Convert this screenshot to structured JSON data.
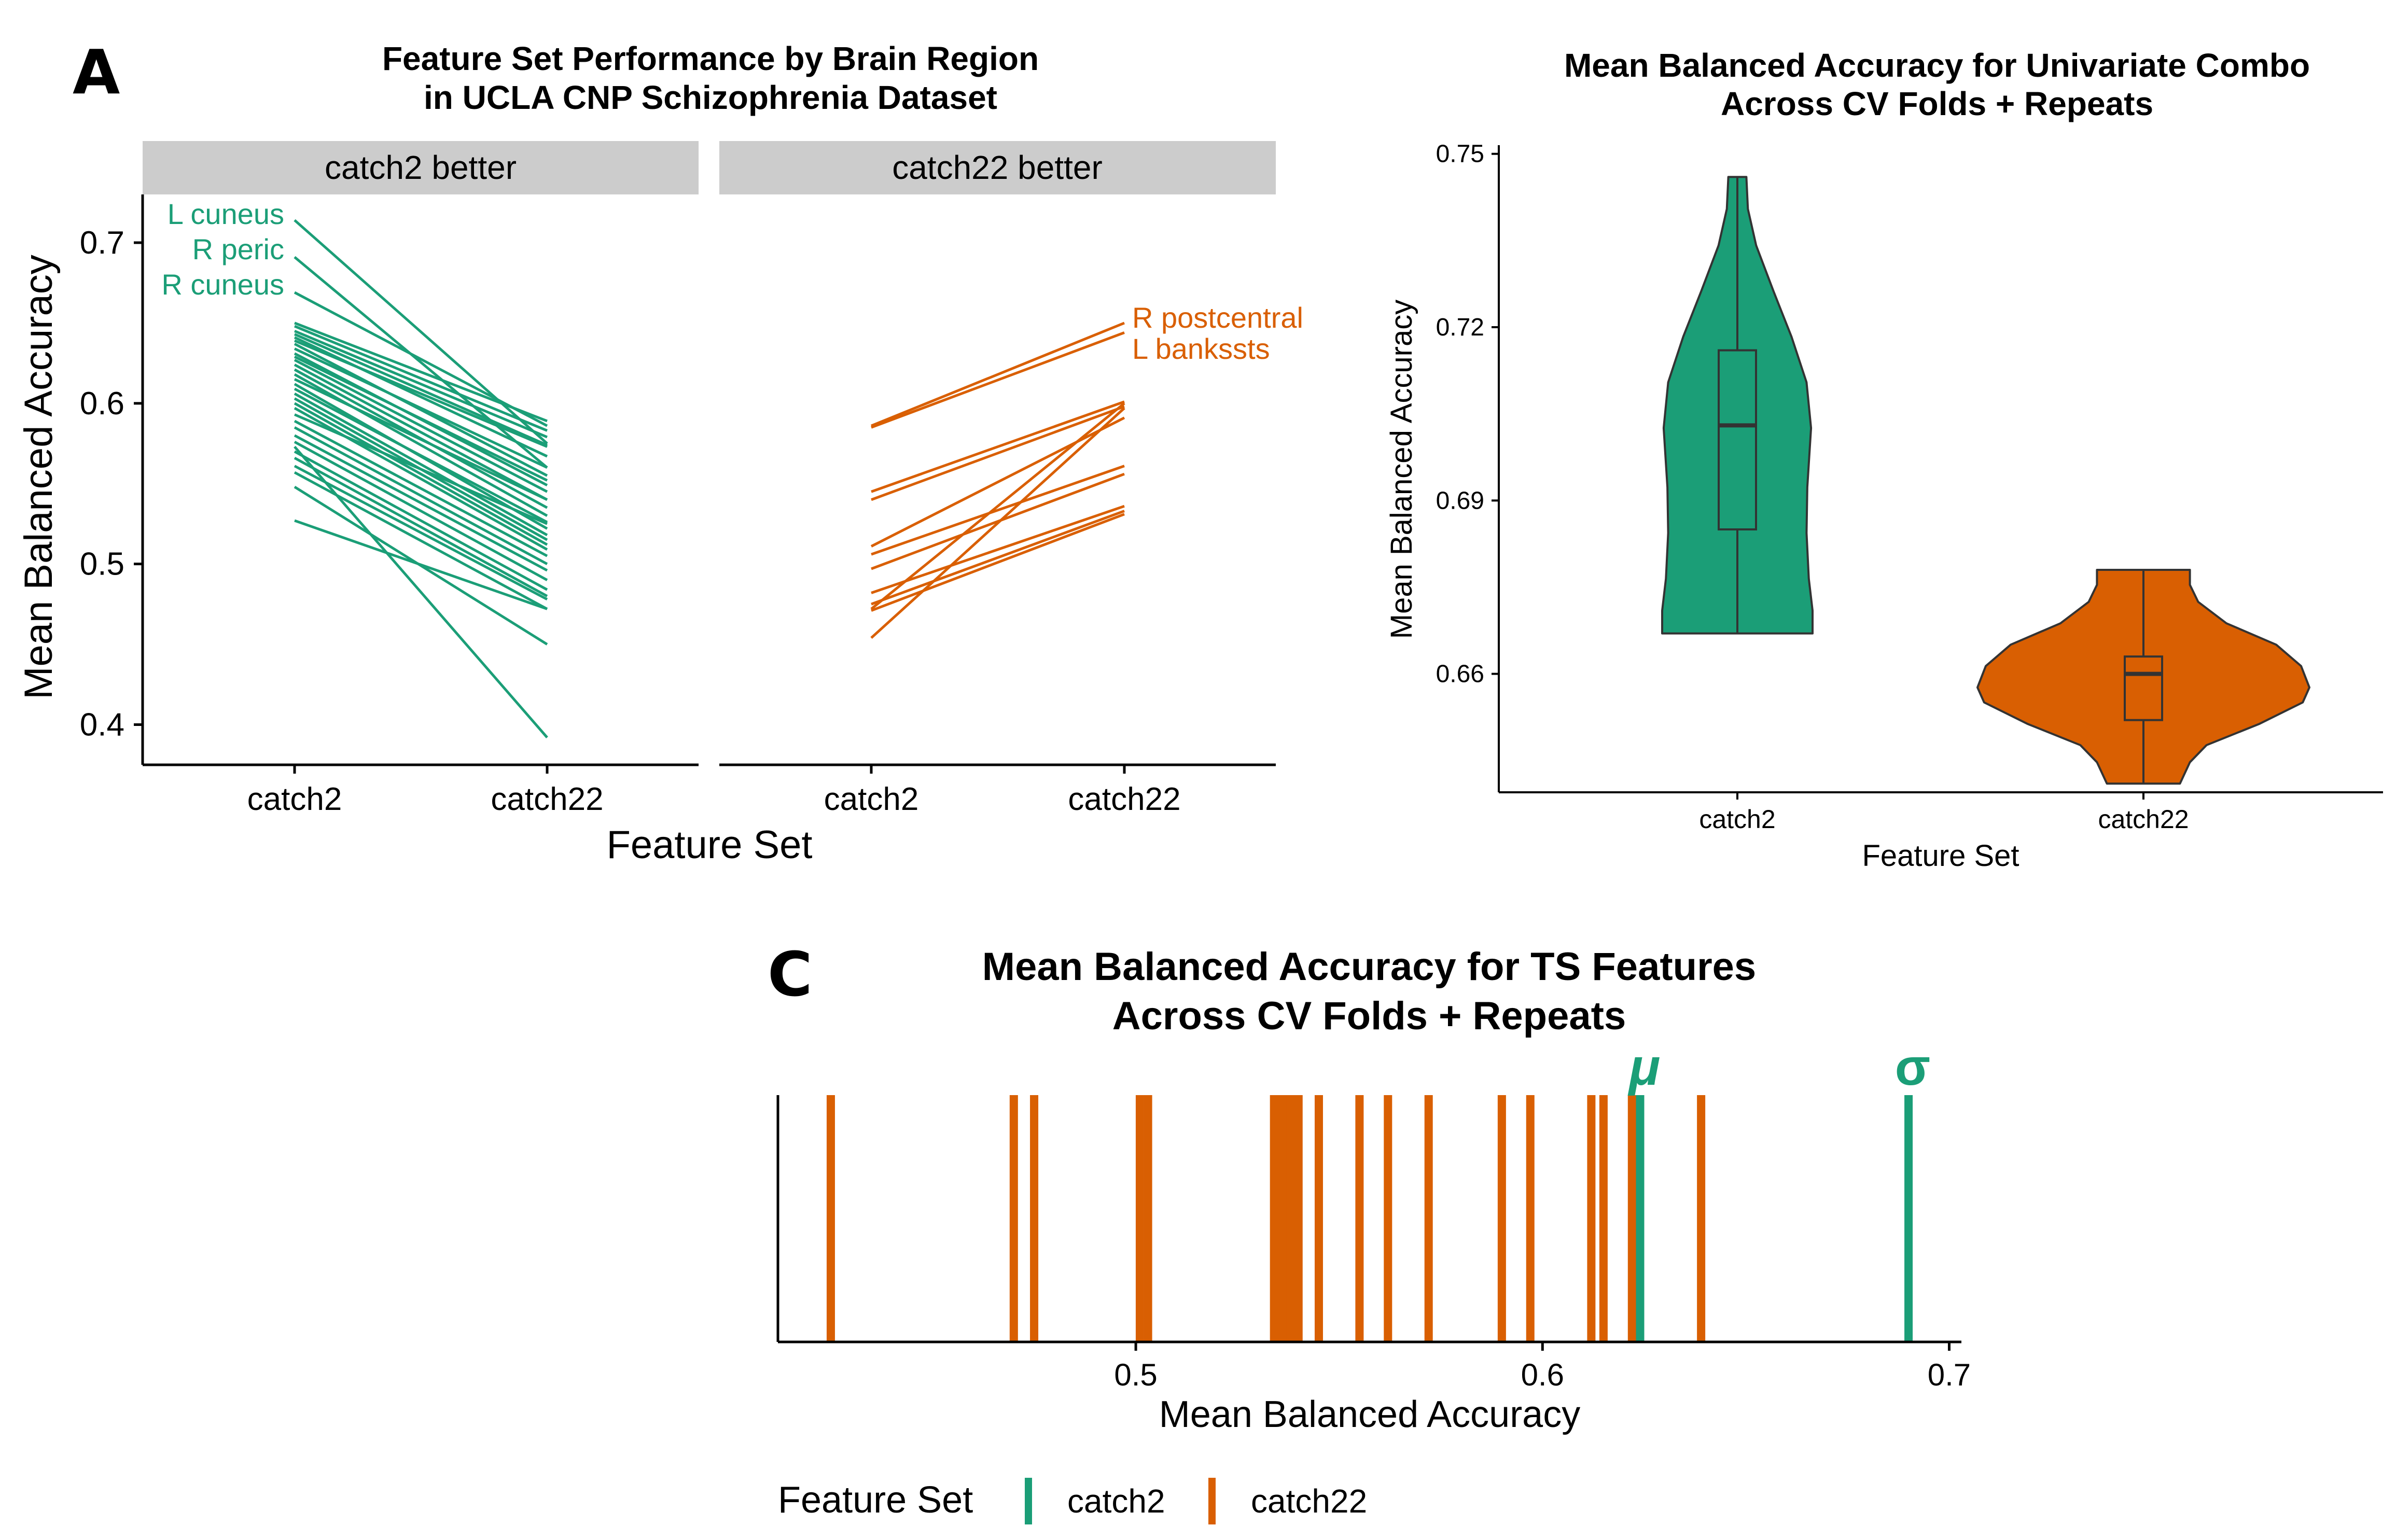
{
  "colors": {
    "catch2": "#1b9e77",
    "catch22": "#d95f02",
    "strip": "#cccccc",
    "axis": "#000000"
  },
  "panel_letters": {
    "a": "A",
    "c": "C"
  },
  "chart_data": [
    {
      "id": "A",
      "type": "line",
      "title": "Feature Set Performance by Brain Region",
      "subtitle": "in UCLA CNP Schizophrenia Dataset",
      "xlabel": "Feature Set",
      "ylabel": "Mean Balanced Accuracy",
      "y_ticks": [
        "0.4",
        "0.5",
        "0.6",
        "0.7"
      ],
      "ylim": [
        0.375,
        0.73
      ],
      "categories": [
        "catch2",
        "catch22"
      ],
      "facets": [
        {
          "label": "catch2 better",
          "color_key": "catch2",
          "annotations": [
            "L cuneus",
            "R peric",
            "R cuneus"
          ],
          "pairs": [
            [
              0.714,
              0.575
            ],
            [
              0.691,
              0.56
            ],
            [
              0.669,
              0.586
            ],
            [
              0.65,
              0.589
            ],
            [
              0.648,
              0.583
            ],
            [
              0.645,
              0.579
            ],
            [
              0.643,
              0.574
            ],
            [
              0.641,
              0.567
            ],
            [
              0.639,
              0.573
            ],
            [
              0.637,
              0.555
            ],
            [
              0.634,
              0.56
            ],
            [
              0.631,
              0.549
            ],
            [
              0.629,
              0.552
            ],
            [
              0.627,
              0.545
            ],
            [
              0.624,
              0.54
            ],
            [
              0.621,
              0.535
            ],
            [
              0.618,
              0.53
            ],
            [
              0.615,
              0.54
            ],
            [
              0.612,
              0.522
            ],
            [
              0.609,
              0.526
            ],
            [
              0.606,
              0.518
            ],
            [
              0.603,
              0.515
            ],
            [
              0.6,
              0.512
            ],
            [
              0.597,
              0.509
            ],
            [
              0.593,
              0.525
            ],
            [
              0.589,
              0.505
            ],
            [
              0.585,
              0.5
            ],
            [
              0.58,
              0.496
            ],
            [
              0.576,
              0.49
            ],
            [
              0.57,
              0.484
            ],
            [
              0.566,
              0.48
            ],
            [
              0.561,
              0.478
            ],
            [
              0.557,
              0.472
            ],
            [
              0.573,
              0.392
            ],
            [
              0.548,
              0.45
            ],
            [
              0.527,
              0.472
            ]
          ]
        },
        {
          "label": "catch22 better",
          "color_key": "catch22",
          "annotations": [
            "R postcentral",
            "L bankssts"
          ],
          "pairs": [
            [
              0.586,
              0.65
            ],
            [
              0.585,
              0.644
            ],
            [
              0.545,
              0.601
            ],
            [
              0.54,
              0.598
            ],
            [
              0.511,
              0.591
            ],
            [
              0.506,
              0.561
            ],
            [
              0.497,
              0.556
            ],
            [
              0.482,
              0.536
            ],
            [
              0.475,
              0.533
            ],
            [
              0.472,
              0.6
            ],
            [
              0.471,
              0.531
            ],
            [
              0.454,
              0.597
            ]
          ]
        }
      ]
    },
    {
      "id": "B",
      "type": "violin",
      "title": "Mean Balanced Accuracy for Univariate Combo",
      "subtitle": "Across CV Folds + Repeats",
      "xlabel": "Feature Set",
      "ylabel": "Mean Balanced Accuracy",
      "y_ticks": [
        "0.66",
        "0.69",
        "0.72",
        "0.75"
      ],
      "ylim": [
        0.6395,
        0.7515
      ],
      "categories": [
        "catch2",
        "catch22"
      ],
      "box": [
        {
          "min": 0.667,
          "q1": 0.685,
          "median": 0.703,
          "q3": 0.716,
          "max": 0.746
        },
        {
          "min": 0.641,
          "q1": 0.652,
          "median": 0.66,
          "q3": 0.663,
          "max": 0.678
        }
      ]
    },
    {
      "id": "C",
      "type": "rug",
      "title": "Mean Balanced Accuracy for TS Features",
      "subtitle": "Across CV Folds + Repeats",
      "xlabel": "Mean Balanced Accuracy",
      "x_ticks": [
        "0.5",
        "0.6",
        "0.7"
      ],
      "xlim": [
        0.412,
        0.703
      ],
      "series": [
        {
          "name": "catch2",
          "color_key": "catch2",
          "values": [
            0.624,
            0.69
          ],
          "annotations": [
            "μ",
            "σ"
          ]
        },
        {
          "name": "catch22",
          "color_key": "catch22",
          "values": [
            0.425,
            0.47,
            0.475,
            0.501,
            0.503,
            0.534,
            0.535,
            0.537,
            0.538,
            0.539,
            0.54,
            0.545,
            0.555,
            0.562,
            0.572,
            0.59,
            0.597,
            0.612,
            0.615,
            0.622,
            0.639
          ]
        }
      ]
    }
  ],
  "legend": {
    "title": "Feature Set",
    "items": [
      "catch2",
      "catch22"
    ]
  }
}
